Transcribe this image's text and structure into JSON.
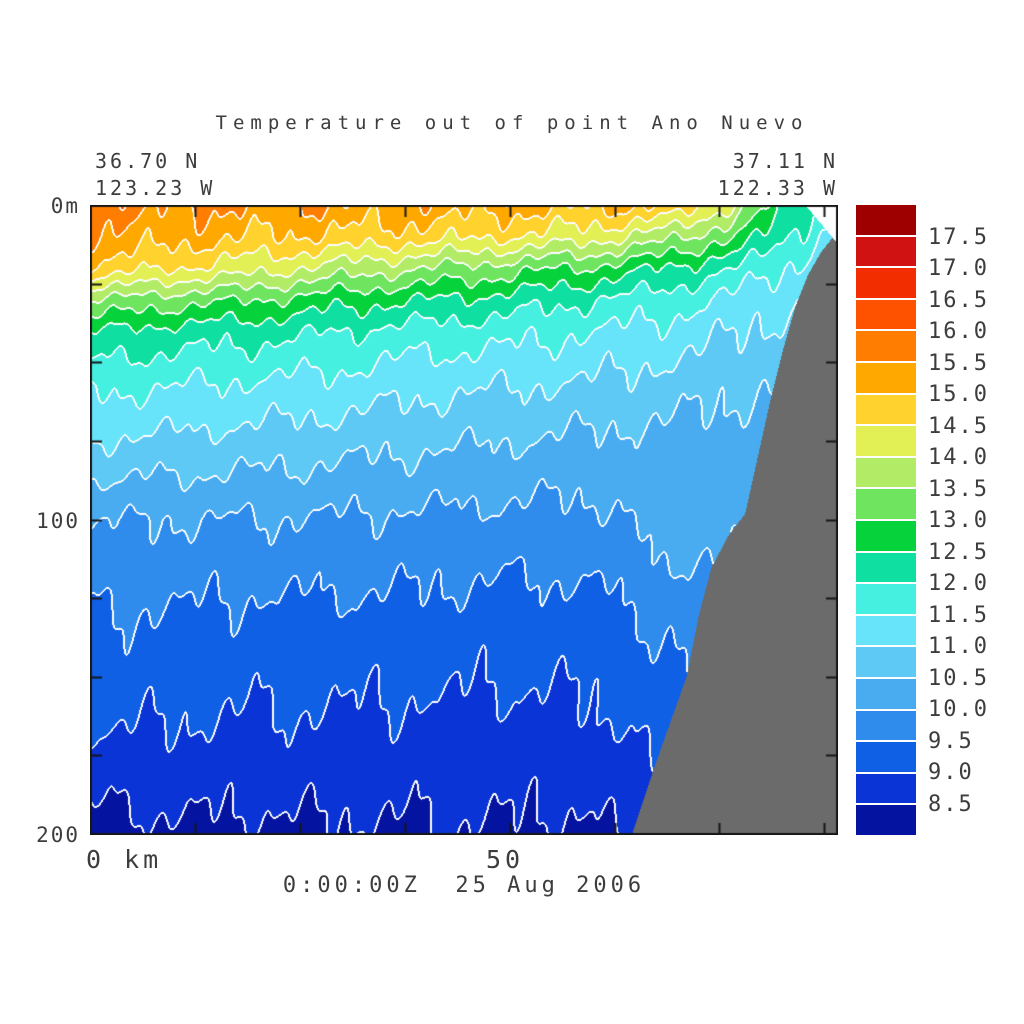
{
  "title": "Temperature out of point Ano Nuevo",
  "header": {
    "left_coord_lat": "36.70 N",
    "left_coord_lon": "123.23 W",
    "right_coord_lat": "37.11 N",
    "right_coord_lon": "122.33 W"
  },
  "axes": {
    "y_top": "0m",
    "y_mid": "100",
    "y_bottom": "200",
    "x_origin": "0 km",
    "x_mid": "50"
  },
  "footer": {
    "timestamp": "0:00:00Z  25 Aug 2006"
  },
  "colorbar": {
    "labels": [
      "17.5",
      "17.0",
      "16.5",
      "16.0",
      "15.5",
      "15.0",
      "14.5",
      "14.0",
      "13.5",
      "13.0",
      "12.5",
      "12.0",
      "11.5",
      "11.0",
      "10.5",
      "10.0",
      "9.5",
      "9.0",
      "8.5"
    ]
  },
  "chart_data": {
    "type": "heatmap",
    "title": "Temperature out of point Ano Nuevo",
    "subtitle": "0:00:00Z  25 Aug 2006",
    "transect_start": "36.70 N 123.23 W",
    "transect_end": "37.11 N 122.33 W",
    "x_units": "km",
    "depth_units": "m",
    "temperature_units": "degC",
    "x_range_km": [
      0,
      89
    ],
    "depth_range_m": [
      0,
      200
    ],
    "contour_interval_degC": 0.5,
    "levels_degC": [
      8.5,
      9.0,
      9.5,
      10.0,
      10.5,
      11.0,
      11.5,
      12.0,
      12.5,
      13.0,
      13.5,
      14.0,
      14.5,
      15.0,
      15.5,
      16.0,
      16.5,
      17.0,
      17.5
    ],
    "x_km": [
      0,
      10,
      20,
      30,
      40,
      50,
      60,
      70,
      78,
      84,
      89
    ],
    "depth_m": [
      0,
      10,
      20,
      30,
      40,
      55,
      75,
      100,
      130,
      165,
      200
    ],
    "temperature_grid_degC": [
      [
        15.7,
        15.6,
        15.5,
        15.4,
        15.3,
        15.2,
        15.1,
        15.0,
        13.6,
        12.4,
        11.3
      ],
      [
        15.4,
        15.2,
        15.0,
        14.9,
        14.7,
        14.5,
        14.2,
        13.6,
        12.8,
        11.9,
        11.1
      ],
      [
        14.9,
        14.5,
        14.2,
        13.8,
        13.5,
        13.2,
        12.9,
        12.4,
        11.9,
        11.4,
        10.9
      ],
      [
        13.5,
        13.2,
        13.0,
        12.7,
        12.5,
        12.3,
        12.0,
        11.7,
        11.3,
        11.0,
        10.7
      ],
      [
        12.5,
        12.3,
        12.2,
        12.0,
        11.8,
        11.7,
        11.5,
        11.3,
        11.0,
        10.8,
        10.5
      ],
      [
        11.7,
        11.6,
        11.5,
        11.4,
        11.2,
        11.1,
        11.0,
        10.8,
        10.6,
        10.5,
        10.3
      ],
      [
        11.0,
        10.9,
        10.8,
        10.7,
        10.6,
        10.5,
        10.4,
        10.35,
        10.25,
        10.2,
        10.1
      ],
      [
        10.0,
        10.0,
        9.98,
        9.95,
        9.9,
        9.85,
        9.85,
        10.3,
        10.2,
        10.1,
        10.0
      ],
      [
        9.5,
        9.45,
        9.4,
        9.38,
        9.35,
        9.3,
        9.3,
        9.7,
        9.8,
        9.9,
        9.85
      ],
      [
        9.05,
        9.0,
        8.95,
        8.92,
        8.9,
        8.85,
        8.9,
        9.3,
        9.5,
        9.6,
        9.6
      ],
      [
        8.3,
        8.4,
        8.4,
        8.42,
        8.45,
        8.45,
        8.4,
        8.9,
        9.2,
        9.4,
        9.4
      ]
    ],
    "bathymetry_km_depth": [
      [
        62,
        215
      ],
      [
        64.5,
        200
      ],
      [
        67,
        180
      ],
      [
        69,
        165
      ],
      [
        71,
        150
      ],
      [
        72.5,
        130
      ],
      [
        74,
        115
      ],
      [
        76,
        105
      ],
      [
        78,
        98
      ],
      [
        79.5,
        80
      ],
      [
        81,
        62
      ],
      [
        82.5,
        46
      ],
      [
        84,
        32
      ],
      [
        85.5,
        22
      ],
      [
        87,
        15
      ],
      [
        88.5,
        10
      ],
      [
        89,
        9
      ]
    ],
    "nodata_wedge": {
      "from_km": 85.2,
      "to_km": 89,
      "depth_at_to_km": 12
    },
    "palette_cold_to_warm": [
      "#0414a0",
      "#0a34d6",
      "#1060e6",
      "#2f8cec",
      "#49acf0",
      "#5ec9f5",
      "#68e4fa",
      "#46f0e0",
      "#0fe0a2",
      "#06d23c",
      "#6fe45e",
      "#b2ec66",
      "#e2f055",
      "#ffd22e",
      "#ffa800",
      "#ff7d00",
      "#ff5200",
      "#f22d00",
      "#d11212",
      "#9e0000"
    ],
    "contour_line_color": "#fcfcfc",
    "land_color": "#6b6b6b",
    "x_ticks_km": [
      0,
      12.5,
      25,
      37.5,
      50,
      62.5,
      75,
      87.5
    ],
    "y_ticks_m": [
      0,
      25,
      50,
      75,
      100,
      125,
      150,
      175,
      200
    ],
    "x_tick_labels": [
      "0 km",
      "50"
    ],
    "y_tick_labels": [
      "0m",
      "100",
      "200"
    ],
    "legend_position": "right",
    "grid": false
  }
}
